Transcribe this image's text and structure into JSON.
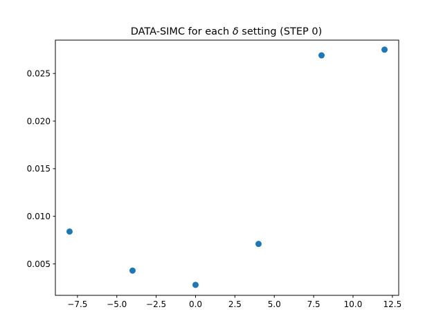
{
  "chart_data": {
    "type": "scatter",
    "title_prefix": "DATA-SIMC for each ",
    "title_symbol": "δ",
    "title_suffix": " setting (STEP 0)",
    "xlabel": "",
    "ylabel": "",
    "xlim": [
      -8.9,
      12.9
    ],
    "ylim": [
      0.0017,
      0.0285
    ],
    "x_ticks": [
      -7.5,
      -5.0,
      -2.5,
      0.0,
      2.5,
      5.0,
      7.5,
      10.0,
      12.5
    ],
    "x_tick_labels": [
      "−7.5",
      "−5.0",
      "−2.5",
      "0.0",
      "2.5",
      "5.0",
      "7.5",
      "10.0",
      "12.5"
    ],
    "y_ticks": [
      0.005,
      0.01,
      0.015,
      0.02,
      0.025
    ],
    "y_tick_labels": [
      "0.005",
      "0.010",
      "0.015",
      "0.020",
      "0.025"
    ],
    "grid": false,
    "marker_color": "#1f77b4",
    "x": [
      -8,
      -4,
      0,
      4,
      8,
      12
    ],
    "y": [
      0.0084,
      0.0043,
      0.0028,
      0.0071,
      0.0269,
      0.0275
    ]
  }
}
